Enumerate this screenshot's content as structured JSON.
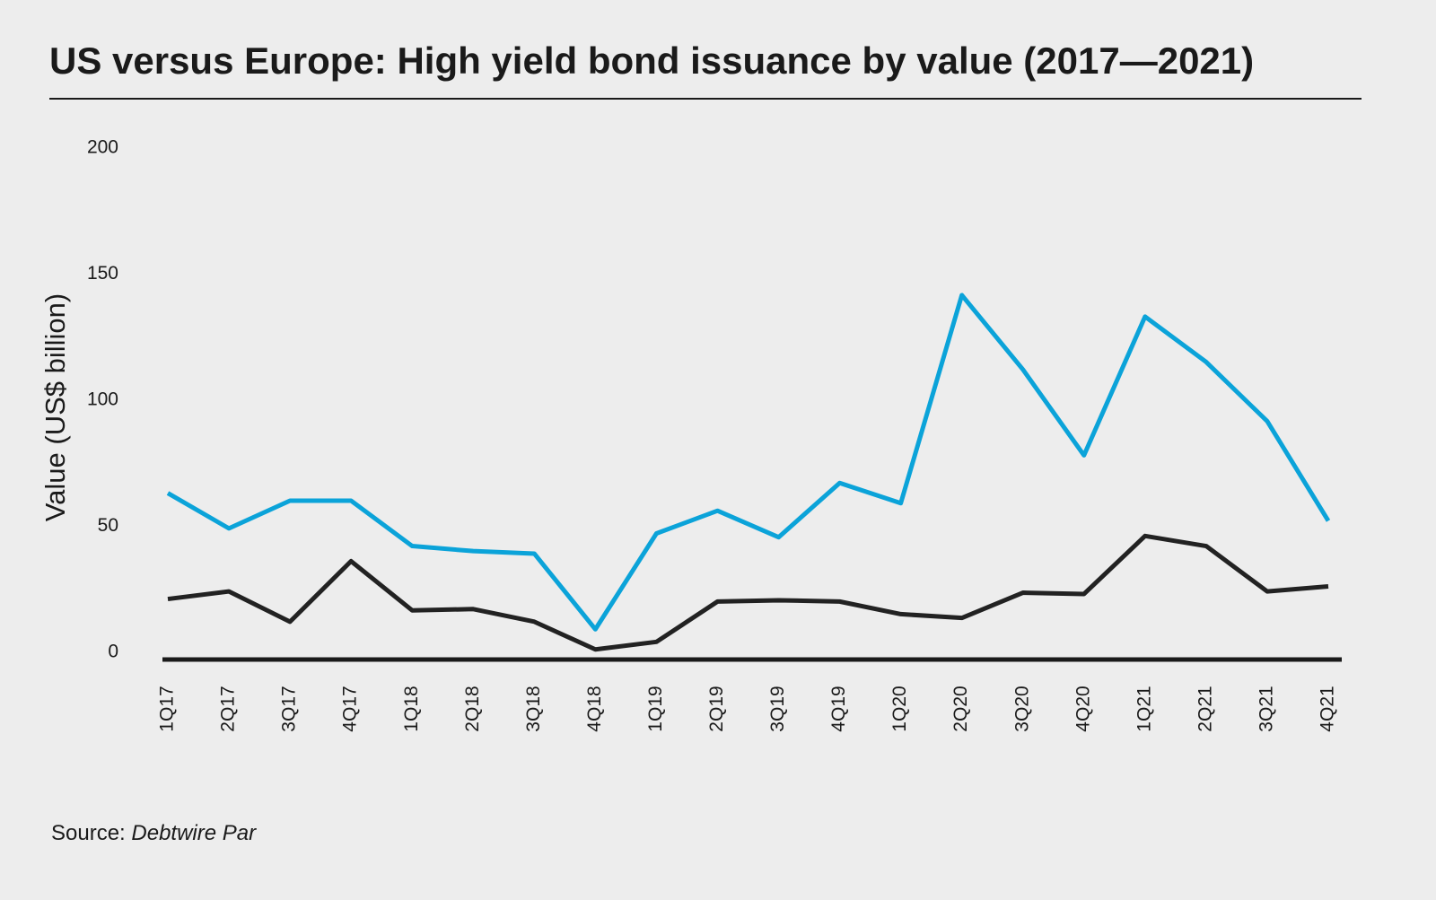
{
  "chart_data": {
    "type": "line",
    "title": "US versus Europe: High yield bond issuance by value (2017—2021)",
    "y_label": "Value (US$ billion)",
    "categories": [
      "1Q17",
      "2Q17",
      "3Q17",
      "4Q17",
      "1Q18",
      "2Q18",
      "3Q18",
      "4Q18",
      "1Q19",
      "2Q19",
      "3Q19",
      "4Q19",
      "1Q20",
      "2Q20",
      "3Q20",
      "4Q20",
      "1Q21",
      "2Q21",
      "3Q21",
      "4Q21"
    ],
    "series": [
      {
        "color": "#0ba3d9",
        "values": [
          66,
          52,
          63,
          63,
          45,
          43,
          42,
          12,
          50,
          59,
          48.5,
          70,
          62,
          144.5,
          115,
          81,
          136,
          118,
          94.5,
          55
        ]
      },
      {
        "color": "#222222",
        "values": [
          24,
          27,
          15,
          39,
          19.5,
          20,
          15,
          4,
          7,
          23,
          23.5,
          23,
          18,
          16.5,
          26.5,
          26,
          49,
          45,
          27,
          29
        ]
      }
    ],
    "ylim": [
      0,
      200
    ],
    "yticks": [
      0,
      50,
      100,
      150,
      200
    ],
    "grid": false,
    "source": {
      "label": "Source:",
      "name": "Debtwire Par"
    }
  }
}
